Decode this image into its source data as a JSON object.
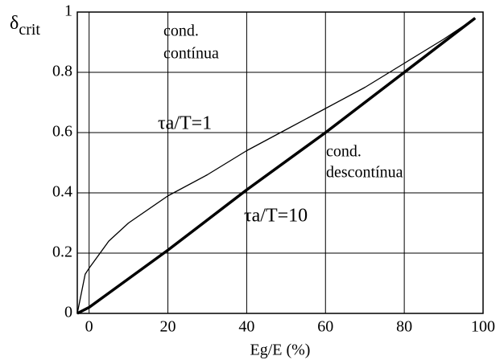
{
  "chart_data": {
    "type": "line",
    "xlabel": "Eg/E (%)",
    "ylabel": {
      "symbol": "δ",
      "subscript": "crit"
    },
    "xlim": [
      -3,
      100
    ],
    "ylim": [
      0,
      1
    ],
    "xticks": [
      0,
      20,
      40,
      60,
      80,
      100
    ],
    "yticks": [
      0,
      0.2,
      0.4,
      0.6,
      0.8,
      1
    ],
    "grid": true,
    "series": [
      {
        "name": "τa/T=1",
        "color": "#000000",
        "width": 1.3,
        "x": [
          -3,
          -1,
          0,
          5,
          10,
          20,
          30,
          40,
          50,
          60,
          70,
          80,
          90,
          98
        ],
        "values": [
          0,
          0.13,
          0.15,
          0.24,
          0.3,
          0.39,
          0.46,
          0.54,
          0.61,
          0.68,
          0.75,
          0.83,
          0.91,
          0.98
        ]
      },
      {
        "name": "τa/T=10",
        "color": "#000000",
        "width": 3.5,
        "x": [
          -3,
          0,
          20,
          40,
          60,
          80,
          98
        ],
        "values": [
          0,
          0.02,
          0.21,
          0.41,
          0.6,
          0.8,
          0.98
        ]
      }
    ],
    "annotations": [
      [
        "cond.",
        "contínua"
      ],
      [
        "cond.",
        "descontínua"
      ]
    ]
  }
}
